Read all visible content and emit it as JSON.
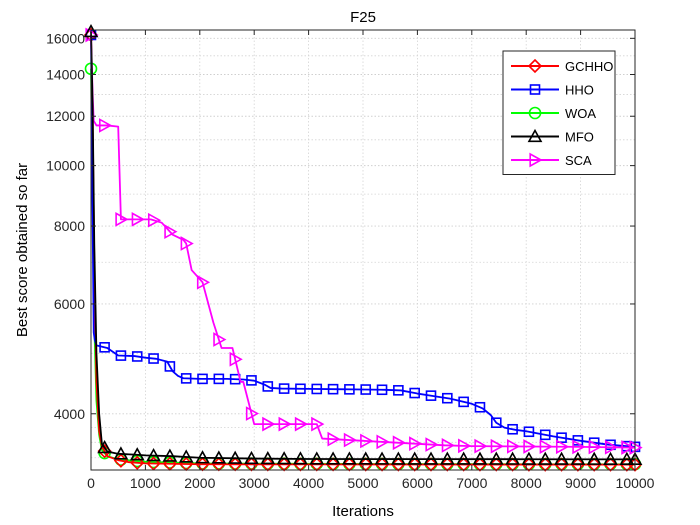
{
  "chart_data": {
    "type": "line",
    "title": "F25",
    "xlabel": "Iterations",
    "ylabel": "Best score obtained so far",
    "xlim": [
      0,
      10000
    ],
    "ylim": [
      3250,
      16500
    ],
    "y_scale": "log",
    "xticks": [
      0,
      1000,
      2000,
      3000,
      4000,
      5000,
      6000,
      7000,
      8000,
      9000,
      10000
    ],
    "xtick_labels": [
      "0",
      "1000",
      "2000",
      "3000",
      "4000",
      "5000",
      "6000",
      "7000",
      "8000",
      "9000",
      "10000"
    ],
    "yticks": [
      4000,
      6000,
      8000,
      10000,
      12000,
      14000,
      16000
    ],
    "ytick_labels": [
      "4000",
      "6000",
      "8000",
      "10000",
      "12000",
      "14000",
      "16000"
    ],
    "grid": true,
    "legend_position": "top-right",
    "series": [
      {
        "name": "GCHHO",
        "color": "#ff0000",
        "marker": "diamond",
        "x": [
          0,
          30,
          60,
          100,
          150,
          200,
          300,
          500,
          700,
          1000,
          2000,
          4000,
          6000,
          8000,
          10000
        ],
        "y": [
          16200,
          12000,
          7000,
          4500,
          3750,
          3550,
          3420,
          3370,
          3345,
          3330,
          3320,
          3318,
          3317,
          3316,
          3315
        ]
      },
      {
        "name": "HHO",
        "color": "#0000ff",
        "marker": "square",
        "x": [
          0,
          20,
          50,
          70,
          100,
          300,
          500,
          800,
          1000,
          1200,
          1400,
          1500,
          1600,
          1700,
          2000,
          2500,
          2800,
          3000,
          3200,
          3300,
          3500,
          4000,
          4500,
          5000,
          5400,
          5700,
          6000,
          6300,
          6600,
          7000,
          7200,
          7350,
          7450,
          7600,
          7800,
          8000,
          8500,
          9000,
          9500,
          10000
        ],
        "y": [
          16200,
          10000,
          5400,
          5250,
          5150,
          5100,
          4960,
          4950,
          4920,
          4900,
          4850,
          4680,
          4600,
          4560,
          4550,
          4550,
          4540,
          4520,
          4450,
          4400,
          4390,
          4385,
          4380,
          4375,
          4370,
          4360,
          4310,
          4270,
          4230,
          4150,
          4080,
          3980,
          3870,
          3800,
          3770,
          3750,
          3680,
          3620,
          3570,
          3540
        ]
      },
      {
        "name": "WOA",
        "color": "#00ff00",
        "marker": "circle",
        "x": [
          0,
          30,
          60,
          100,
          150,
          200,
          300,
          500,
          1000,
          2000,
          4000,
          6000,
          8000,
          10000
        ],
        "y": [
          14300,
          9000,
          5600,
          4200,
          3700,
          3500,
          3420,
          3380,
          3350,
          3330,
          3325,
          3322,
          3320,
          3320
        ]
      },
      {
        "name": "MFO",
        "color": "#000000",
        "marker": "triangle-up",
        "x": [
          0,
          30,
          60,
          100,
          150,
          200,
          300,
          500,
          800,
          1000,
          1500,
          2000,
          3000,
          4000,
          6000,
          8000,
          10000
        ],
        "y": [
          16400,
          12500,
          7500,
          5000,
          4000,
          3580,
          3480,
          3450,
          3440,
          3430,
          3420,
          3400,
          3390,
          3385,
          3383,
          3382,
          3380
        ]
      },
      {
        "name": "SCA",
        "color": "#ff00ff",
        "marker": "triangle-right",
        "x": [
          0,
          30,
          50,
          100,
          150,
          200,
          300,
          500,
          550,
          1100,
          1300,
          1500,
          1700,
          1750,
          1850,
          2050,
          2250,
          2400,
          2600,
          2750,
          2800,
          3000,
          4150,
          4250,
          4500,
          5000,
          5500,
          6000,
          6500,
          7000,
          8000,
          9000,
          10000
        ],
        "y": [
          16200,
          13000,
          11800,
          11600,
          11600,
          11600,
          11600,
          11550,
          8200,
          8200,
          8100,
          7750,
          7600,
          7500,
          6800,
          6500,
          5600,
          5100,
          5100,
          4500,
          4500,
          3850,
          3850,
          3650,
          3640,
          3620,
          3600,
          3580,
          3560,
          3550,
          3545,
          3540,
          3530
        ]
      }
    ]
  }
}
